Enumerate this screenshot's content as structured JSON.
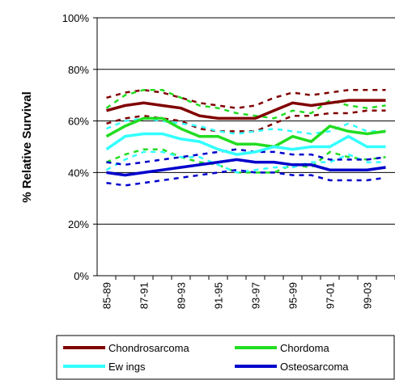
{
  "chart_data": {
    "type": "line",
    "y_label": "% Relative Survival",
    "categories": [
      "85-89",
      null,
      "87-91",
      null,
      "89-93",
      null,
      "91-95",
      null,
      "93-97",
      null,
      "95-99",
      null,
      "97-01",
      null,
      "99-03",
      null
    ],
    "ylim": [
      0,
      100
    ],
    "yticks": [
      {
        "value": 0,
        "label": "0%"
      },
      {
        "value": 20,
        "label": "20%"
      },
      {
        "value": 40,
        "label": "40%"
      },
      {
        "value": 60,
        "label": "60%"
      },
      {
        "value": 80,
        "label": "80%"
      },
      {
        "value": 100,
        "label": "100%"
      }
    ],
    "grid": true,
    "series": [
      {
        "name": "Chondrosarcoma",
        "color": "#800000",
        "values": [
          64,
          66,
          67,
          66,
          65,
          62,
          61,
          61,
          61,
          64,
          67,
          66,
          67,
          68,
          68,
          68
        ],
        "upper": [
          69,
          71,
          72,
          71,
          69,
          67,
          66,
          65,
          66,
          69,
          71,
          70,
          71,
          72,
          72,
          72
        ],
        "lower": [
          59,
          61,
          62,
          61,
          60,
          57,
          56,
          56,
          56,
          59,
          62,
          62,
          63,
          63,
          64,
          64
        ]
      },
      {
        "name": "Chordoma",
        "color": "#22dd22",
        "values": [
          54,
          58,
          61,
          61,
          57,
          54,
          54,
          51,
          51,
          50,
          54,
          52,
          58,
          56,
          55,
          56
        ],
        "upper": [
          65,
          70,
          72,
          72,
          69,
          66,
          65,
          63,
          62,
          61,
          64,
          63,
          68,
          66,
          65,
          66
        ],
        "lower": [
          44,
          47,
          49,
          49,
          46,
          44,
          43,
          40,
          40,
          40,
          43,
          42,
          48,
          46,
          45,
          46
        ]
      },
      {
        "name": "Ew ings",
        "color": "#33ffff",
        "values": [
          49,
          54,
          55,
          55,
          53,
          52,
          49,
          47,
          48,
          50,
          49,
          50,
          50,
          54,
          50,
          50
        ],
        "upper": [
          57,
          60,
          61,
          60,
          59,
          58,
          56,
          55,
          56,
          57,
          56,
          55,
          56,
          59,
          56,
          56
        ],
        "lower": [
          41,
          45,
          48,
          48,
          46,
          46,
          43,
          40,
          41,
          42,
          42,
          44,
          44,
          47,
          44,
          44
        ]
      },
      {
        "name": "Osteosarcoma",
        "color": "#0000cc",
        "values": [
          40,
          39,
          40,
          41,
          42,
          43,
          44,
          45,
          44,
          44,
          43,
          43,
          41,
          41,
          41,
          42
        ],
        "upper": [
          44,
          43,
          44,
          45,
          46,
          47,
          48,
          49,
          48,
          48,
          47,
          47,
          45,
          45,
          45,
          46
        ],
        "lower": [
          36,
          35,
          36,
          37,
          38,
          39,
          40,
          41,
          40,
          40,
          39,
          39,
          37,
          37,
          37,
          38
        ]
      }
    ]
  }
}
